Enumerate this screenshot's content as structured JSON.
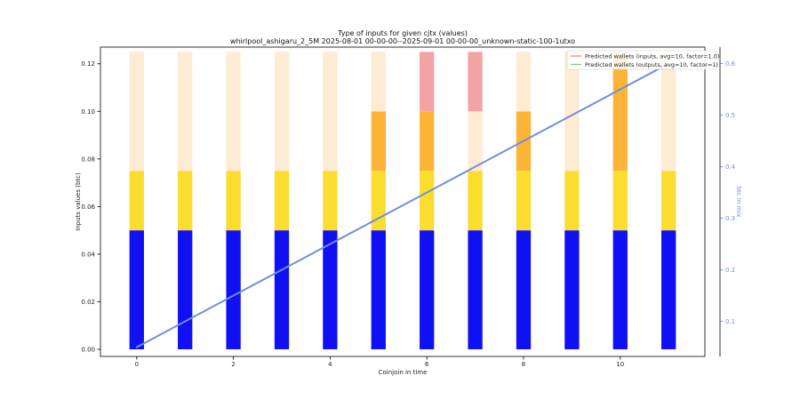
{
  "chart_data": {
    "type": "bar",
    "title": "Type of inputs for given cjtx (values)",
    "subtitle": "whirlpool_ashigaru_2_5M 2025-08-01 00-00-00--2025-09-01 00-00-00_unknown-static-100-1utxo",
    "xlabel": "Coinjoin in time",
    "ylabel": "Inputs values (btc)",
    "y2label": "btc in mix",
    "categories": [
      0,
      1,
      2,
      3,
      4,
      5,
      6,
      7,
      8,
      9,
      10,
      11
    ],
    "x_ticks": [
      "0",
      "2",
      "4",
      "6",
      "8",
      "10"
    ],
    "x_range": [
      -0.75,
      11.75
    ],
    "ylim": [
      -0.003,
      0.127
    ],
    "y_ticks": [
      "0.00",
      "0.02",
      "0.04",
      "0.06",
      "0.08",
      "0.10",
      "0.12"
    ],
    "y2lim": [
      0.032,
      0.632
    ],
    "y2_ticks": [
      "0.1",
      "0.2",
      "0.3",
      "0.4",
      "0.5",
      "0.6"
    ],
    "stacked": true,
    "series": [
      {
        "color": "#1010f5",
        "values": [
          0.05,
          0.05,
          0.05,
          0.05,
          0.05,
          0.05,
          0.05,
          0.05,
          0.05,
          0.05,
          0.05,
          0.05
        ]
      },
      {
        "color": "#fbdd30",
        "values": [
          0.025,
          0.025,
          0.025,
          0.025,
          0.025,
          0.025,
          0.025,
          0.025,
          0.025,
          0.025,
          0.025,
          0.025
        ]
      },
      {
        "color": "#fbb436",
        "values": [
          0,
          0,
          0,
          0,
          0,
          0.025,
          0.025,
          0,
          0.025,
          0,
          0.05,
          0
        ]
      },
      {
        "color": "#fdebd3",
        "values": [
          0.05,
          0.05,
          0.05,
          0.05,
          0.05,
          0.025,
          0,
          0.025,
          0.025,
          0.05,
          0,
          0.05
        ]
      },
      {
        "color": "#f2a3a3",
        "values": [
          0,
          0,
          0,
          0,
          0,
          0,
          0.025,
          0.025,
          0,
          0,
          0,
          0
        ]
      }
    ],
    "secondary_line": {
      "color": "#6f8fe0",
      "x": [
        0,
        11
      ],
      "y": [
        0.05,
        0.6
      ]
    },
    "legend": {
      "position": "top-right",
      "entries": [
        {
          "label": "Predicted wallets (inputs, avg=10, factor=1.0)",
          "color": "#f08080"
        },
        {
          "label": "Predicted wallets (outputs, avg=10, factor=1)",
          "color": "#7fc97f"
        }
      ]
    },
    "grid": false
  }
}
